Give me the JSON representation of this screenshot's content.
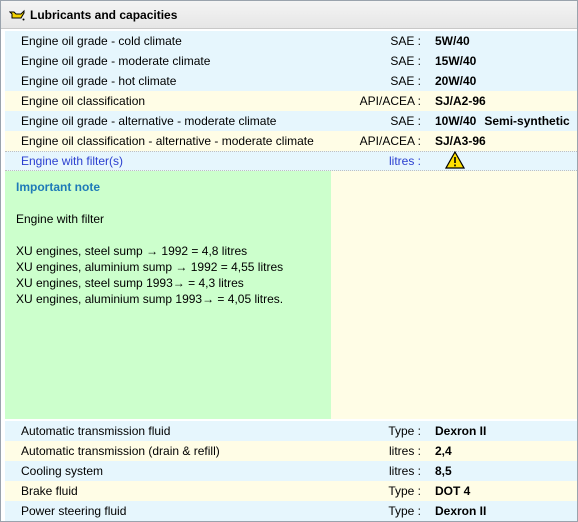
{
  "header": {
    "title": "Lubricants and capacities",
    "icon": "oil-can-icon"
  },
  "rows_top": [
    {
      "label": "Engine oil grade - cold climate",
      "unit": "SAE :",
      "value": "5W/40",
      "extra": ""
    },
    {
      "label": "Engine oil grade - moderate climate",
      "unit": "SAE :",
      "value": "15W/40",
      "extra": ""
    },
    {
      "label": "Engine oil grade - hot climate",
      "unit": "SAE :",
      "value": "20W/40",
      "extra": ""
    },
    {
      "label": "Engine oil classification",
      "unit": "API/ACEA :",
      "value": "SJ/A2-96",
      "extra": ""
    },
    {
      "label": "Engine oil grade - alternative - moderate climate",
      "unit": "SAE :",
      "value": "10W/40",
      "extra": "Semi-synthetic"
    },
    {
      "label": "Engine oil classification - alternative - moderate climate",
      "unit": "API/ACEA :",
      "value": "SJ/A3-96",
      "extra": ""
    }
  ],
  "filter_row": {
    "label": "Engine with filter(s)",
    "unit": "litres :",
    "icon": "warning-icon"
  },
  "note": {
    "title": "Important note",
    "subtitle": "Engine with filter",
    "lines": [
      "XU engines, steel sump  → 1992 = 4,8 litres",
      "XU engines, aluminium sump  → 1992 = 4,55 litres",
      "XU engines, steel sump  1993→ = 4,3 litres",
      "XU engines, aluminium sump  1993→ = 4,05 litres."
    ]
  },
  "rows_bottom": [
    {
      "label": "Automatic transmission fluid",
      "unit": "Type :",
      "value": "Dexron II"
    },
    {
      "label": "Automatic transmission (drain & refill)",
      "unit": "litres :",
      "value": "2,4"
    },
    {
      "label": "Cooling system",
      "unit": "litres :",
      "value": "8,5"
    },
    {
      "label": "Brake fluid",
      "unit": "Type :",
      "value": "DOT 4"
    },
    {
      "label": "Power steering fluid",
      "unit": "Type :",
      "value": "Dexron II"
    }
  ],
  "colors": {
    "row_blue": "#e6f6fd",
    "row_yellow": "#fffde6",
    "note_green": "#ccffcc",
    "note_title": "#1e7ab8",
    "link_blue": "#2a3ecf"
  }
}
